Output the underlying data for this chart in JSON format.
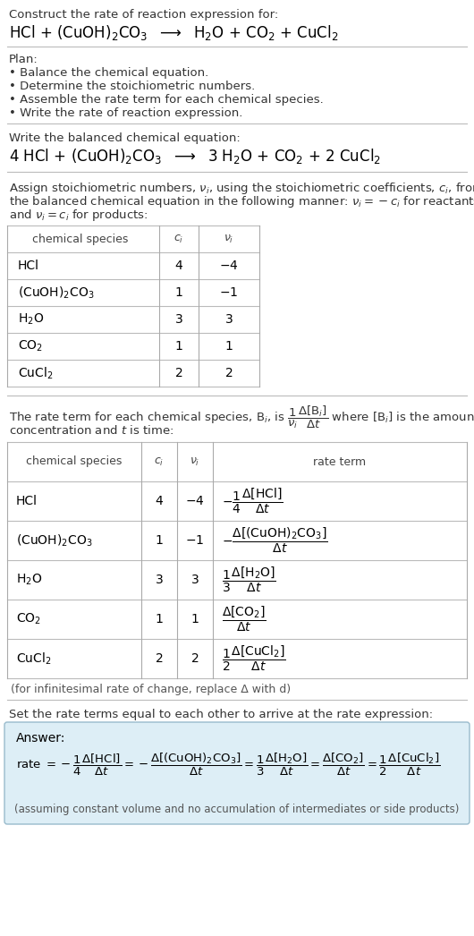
{
  "bg_color": "#ffffff",
  "text_color": "#222222",
  "gray_color": "#555555",
  "answer_bg": "#ddeef6",
  "answer_border": "#99bbcc",
  "title_text": "Construct the rate of reaction expression for:",
  "plan_header": "Plan:",
  "plan_items": [
    "• Balance the chemical equation.",
    "• Determine the stoichiometric numbers.",
    "• Assemble the rate term for each chemical species.",
    "• Write the rate of reaction expression."
  ],
  "balanced_header": "Write the balanced chemical equation:",
  "stoich_header_lines": [
    "Assign stoichiometric numbers, ν_i, using the stoichiometric coefficients, c_i, from",
    "the balanced chemical equation in the following manner: ν_i = −c_i for reactants",
    "and ν_i = c_i for products:"
  ],
  "rate_header_lines": [
    "The rate term for each chemical species, B_i, is ",
    "concentration and t is time:"
  ],
  "infinitesimal_note": "(for infinitesimal rate of change, replace Δ with d)",
  "set_equal_header": "Set the rate terms equal to each other to arrive at the rate expression:",
  "answer_label": "Answer:",
  "answer_note": "(assuming constant volume and no accumulation of intermediates or side products)"
}
